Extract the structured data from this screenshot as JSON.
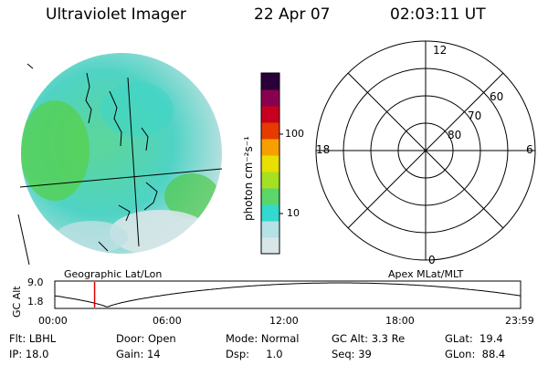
{
  "header": {
    "instrument": "Ultraviolet Imager",
    "date": "22 Apr 07",
    "time": "02:03:11 UT"
  },
  "colorbar": {
    "unit_label": "photon cm⁻²s⁻¹",
    "ticks": [
      "100",
      "10"
    ],
    "colors": [
      "#d9e6e8",
      "#b6e1e6",
      "#33d9cc",
      "#5ad66a",
      "#a6e022",
      "#e7e000",
      "#f6a000",
      "#e63a00",
      "#c80020",
      "#8a0050",
      "#2a0038"
    ]
  },
  "polar_plot": {
    "mlt_labels": {
      "top": "12",
      "right": "6",
      "bottom": "0",
      "left": "18"
    },
    "lat_labels": [
      "60",
      "70",
      "80"
    ]
  },
  "timeline": {
    "left_label": "Geographic Lat/Lon",
    "right_label": "Apex MLat/MLT",
    "axis_title": "GC Alt",
    "y_max": "9.0",
    "y_min": "1.8",
    "x_ticks": [
      "00:00",
      "06:00",
      "12:00",
      "18:00",
      "23:59"
    ],
    "current_time_hours": 2.05
  },
  "info": {
    "flt": "Flt: LBHL",
    "ip": "IP: 18.0",
    "door": "Door: Open",
    "gain": "Gain: 14",
    "mode": "Mode: Normal",
    "dsp": "Dsp:     1.0",
    "gc_alt": "GC Alt: 3.3 Re",
    "seq": "Seq: 39",
    "glat": "GLat:  19.4",
    "glon": "GLon:  88.4"
  }
}
